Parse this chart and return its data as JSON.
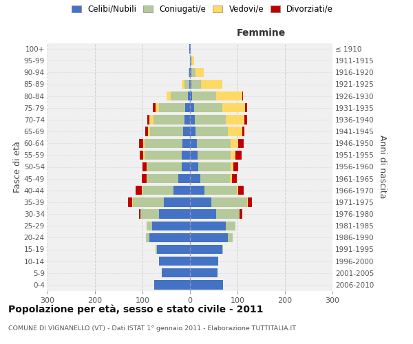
{
  "age_groups": [
    "0-4",
    "5-9",
    "10-14",
    "15-19",
    "20-24",
    "25-29",
    "30-34",
    "35-39",
    "40-44",
    "45-49",
    "50-54",
    "55-59",
    "60-64",
    "65-69",
    "70-74",
    "75-79",
    "80-84",
    "85-89",
    "90-94",
    "95-99",
    "100+"
  ],
  "birth_years": [
    "2006-2010",
    "2001-2005",
    "1996-2000",
    "1991-1995",
    "1986-1990",
    "1981-1985",
    "1976-1980",
    "1971-1975",
    "1966-1970",
    "1961-1965",
    "1956-1960",
    "1951-1955",
    "1946-1950",
    "1941-1945",
    "1936-1940",
    "1931-1935",
    "1926-1930",
    "1921-1925",
    "1916-1920",
    "1911-1915",
    "≤ 1910"
  ],
  "male": {
    "celibi": [
      75,
      60,
      65,
      70,
      85,
      80,
      65,
      55,
      35,
      25,
      18,
      18,
      16,
      14,
      12,
      10,
      5,
      2,
      1,
      0,
      1
    ],
    "coniugati": [
      0,
      0,
      0,
      2,
      8,
      12,
      40,
      65,
      65,
      65,
      72,
      78,
      80,
      70,
      65,
      55,
      35,
      10,
      2,
      0,
      0
    ],
    "vedovi": [
      0,
      0,
      0,
      0,
      0,
      0,
      0,
      2,
      2,
      2,
      2,
      2,
      3,
      5,
      8,
      8,
      10,
      5,
      0,
      0,
      0
    ],
    "divorziati": [
      0,
      0,
      0,
      0,
      0,
      0,
      2,
      8,
      12,
      10,
      8,
      8,
      8,
      5,
      5,
      5,
      0,
      0,
      0,
      0,
      0
    ]
  },
  "female": {
    "nubili": [
      70,
      58,
      60,
      68,
      80,
      75,
      55,
      45,
      30,
      22,
      18,
      16,
      14,
      12,
      10,
      8,
      5,
      3,
      3,
      2,
      1
    ],
    "coniugate": [
      0,
      0,
      0,
      2,
      10,
      20,
      50,
      75,
      68,
      62,
      68,
      70,
      72,
      68,
      65,
      60,
      50,
      20,
      8,
      2,
      0
    ],
    "vedove": [
      0,
      0,
      0,
      0,
      0,
      0,
      0,
      2,
      3,
      5,
      5,
      10,
      15,
      30,
      40,
      48,
      55,
      45,
      18,
      5,
      0
    ],
    "divorziate": [
      0,
      0,
      0,
      0,
      0,
      0,
      5,
      8,
      12,
      10,
      10,
      12,
      12,
      5,
      5,
      5,
      2,
      0,
      0,
      0,
      0
    ]
  },
  "colors": {
    "celibi": "#4472C4",
    "coniugati": "#b5c99a",
    "vedovi": "#FFD966",
    "divorziati": "#C00000"
  },
  "xlim": 300,
  "title": "Popolazione per età, sesso e stato civile - 2011",
  "subtitle": "COMUNE DI VIGNANELLO (VT) - Dati ISTAT 1° gennaio 2011 - Elaborazione TUTTITALIA.IT",
  "ylabel_left": "Fasce di età",
  "ylabel_right": "Anni di nascita",
  "xlabel_right": "Femmine",
  "bg_color": "#f0f0f0",
  "grid_color": "#cccccc"
}
